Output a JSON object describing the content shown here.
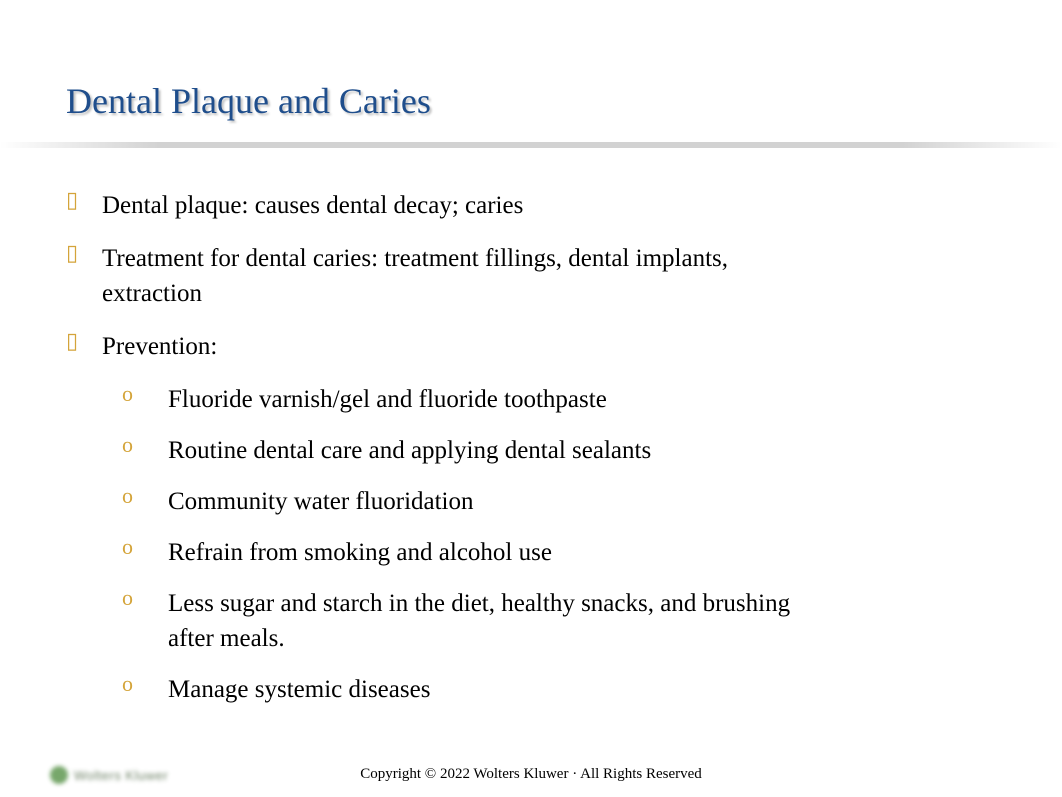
{
  "title": "Dental Plaque and Caries",
  "title_color": "#1f4e8c",
  "title_fontsize": 36,
  "bullet_color": "#d4a43a",
  "body_fontsize": 25,
  "bullets": {
    "b1": "Dental plaque: causes dental decay; caries",
    "b2": "Treatment for dental caries: treatment fillings, dental implants, extraction",
    "b3": "Prevention:"
  },
  "sub_bullets": {
    "s1": "Fluoride varnish/gel and fluoride toothpaste",
    "s2": "Routine dental care and applying dental sealants",
    "s3": "Community water fluoridation",
    "s4": "Refrain from smoking and alcohol use",
    "s5": "Less sugar and starch in the diet, healthy snacks, and brushing after meals.",
    "s6": "Manage systemic diseases"
  },
  "footer": "Copyright © 2022 Wolters Kluwer · All Rights Reserved",
  "logo_text": "Wolters Kluwer"
}
